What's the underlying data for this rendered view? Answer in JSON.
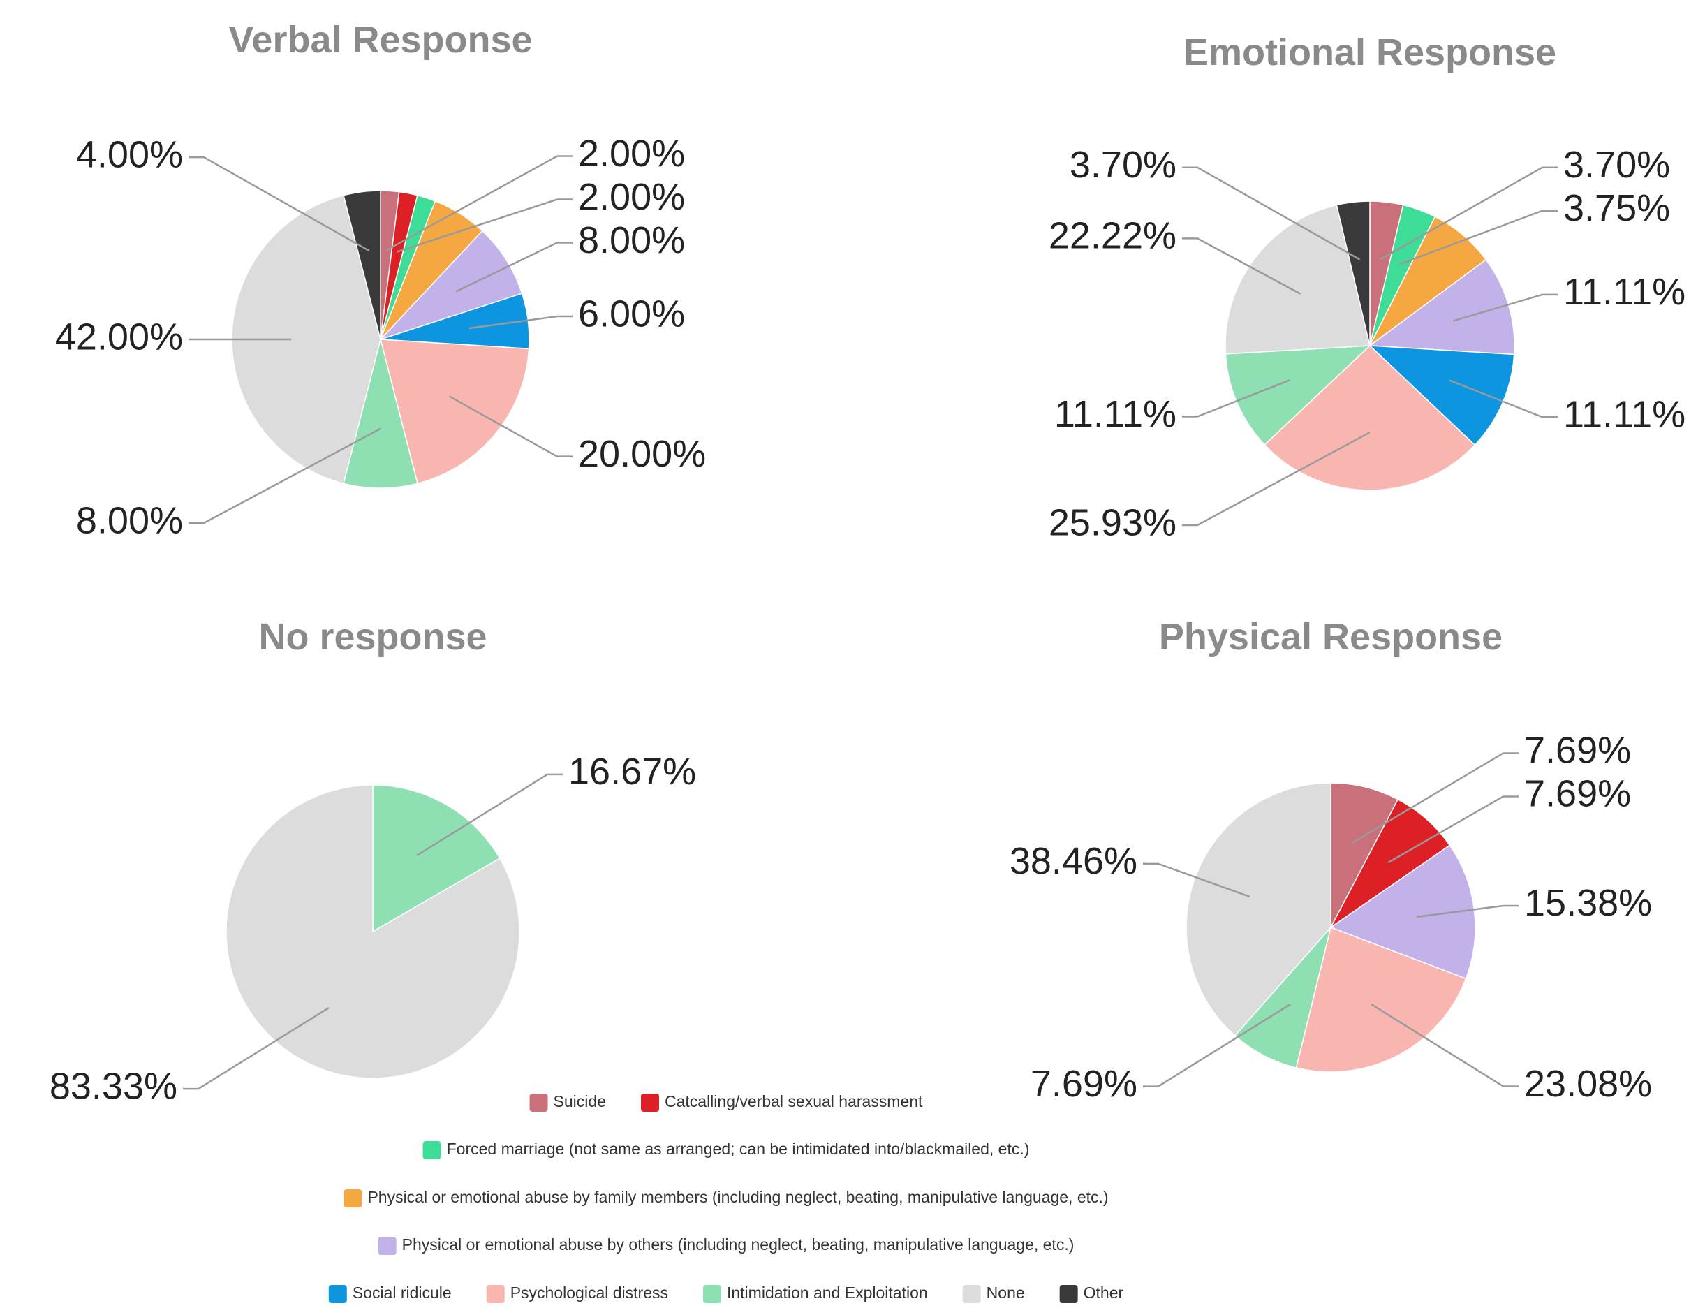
{
  "chart_data": [
    {
      "type": "pie",
      "title": "Verbal Response",
      "categories": [
        "Suicide",
        "Catcalling/verbal sexual harassment",
        "Forced marriage (not same as arranged; can be intimidated into/blackmailed, etc.)",
        "Physical or emotional abuse by family members (including neglect, beating, manipulative language, etc.)",
        "Physical or emotional abuse by others (including neglect, beating, manipulative language, etc.)",
        "Social ridicule",
        "Psychological distress",
        "Intimidation and Exploitation",
        "None",
        "Other"
      ],
      "values": [
        2,
        2,
        2,
        6,
        8,
        6,
        20,
        8,
        42,
        4
      ],
      "value_labels": [
        "2.00%",
        "2.00%",
        null,
        null,
        "8.00%",
        "6.00%",
        "20.00%",
        "8.00%",
        "42.00%",
        "4.00%"
      ]
    },
    {
      "type": "pie",
      "title": "Emotional Response",
      "categories": [
        "Suicide",
        "Forced marriage (not same as arranged; can be intimidated into/blackmailed, etc.)",
        "Physical or emotional abuse by family members (including neglect, beating, manipulative language, etc.)",
        "Physical or emotional abuse by others (including neglect, beating, manipulative language, etc.)",
        "Social ridicule",
        "Psychological distress",
        "Intimidation and Exploitation",
        "None",
        "Other"
      ],
      "values": [
        3.7,
        3.75,
        7.41,
        11.11,
        11.11,
        25.93,
        11.11,
        22.22,
        3.7
      ],
      "value_labels": [
        "3.70%",
        "3.75%",
        null,
        "11.11%",
        "11.11%",
        "25.93%",
        "11.11%",
        "22.22%",
        "3.70%"
      ]
    },
    {
      "type": "pie",
      "title": "No response",
      "categories": [
        "Intimidation and Exploitation",
        "None"
      ],
      "values": [
        16.67,
        83.33
      ],
      "value_labels": [
        "16.67%",
        "83.33%"
      ]
    },
    {
      "type": "pie",
      "title": "Physical Response",
      "categories": [
        "Suicide",
        "Catcalling/verbal sexual harassment",
        "Physical or emotional abuse by others (including neglect, beating, manipulative language, etc.)",
        "Psychological distress",
        "Intimidation and Exploitation",
        "None"
      ],
      "values": [
        7.69,
        7.69,
        15.38,
        23.08,
        7.69,
        38.46
      ],
      "value_labels": [
        "7.69%",
        "7.69%",
        "15.38%",
        "23.08%",
        "7.69%",
        "38.46%"
      ]
    }
  ],
  "legend": {
    "items": [
      {
        "name": "Suicide",
        "color": "#c9707a"
      },
      {
        "name": "Catcalling/verbal sexual harassment",
        "color": "#dd1f26"
      },
      {
        "name": "Forced marriage (not same as arranged; can be intimidated into/blackmailed, etc.)",
        "color": "#3ddc97"
      },
      {
        "name": "Physical or emotional abuse by family members (including neglect, beating, manipulative language, etc.)",
        "color": "#f5a742"
      },
      {
        "name": "Physical or emotional abuse by others (including neglect, beating, manipulative language, etc.)",
        "color": "#c3b1e9"
      },
      {
        "name": "Social ridicule",
        "color": "#0e95e0"
      },
      {
        "name": "Psychological distress",
        "color": "#f9b6b1"
      },
      {
        "name": "Intimidation and Exploitation",
        "color": "#8ee0b2"
      },
      {
        "name": "None",
        "color": "#dcdcdc"
      },
      {
        "name": "Other",
        "color": "#3a3a3a"
      }
    ]
  }
}
